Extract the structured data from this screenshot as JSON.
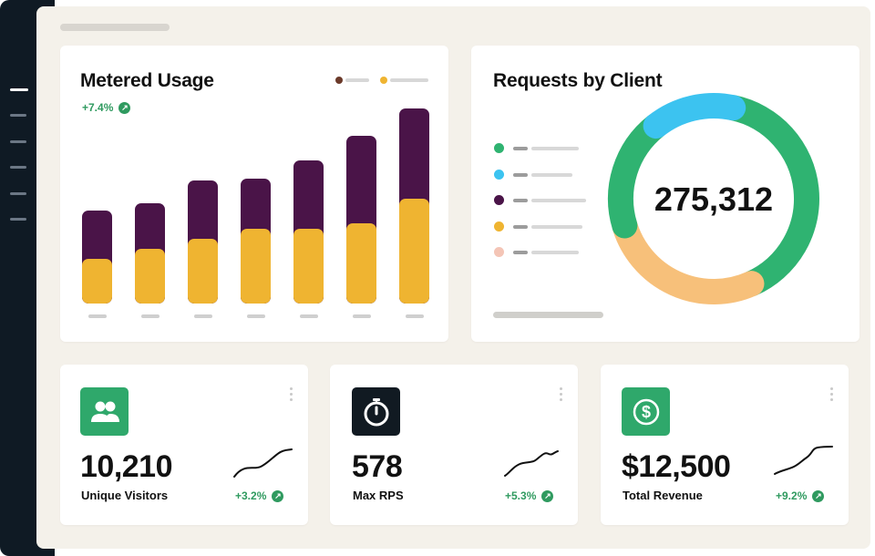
{
  "sidebar": {
    "items": [
      "nav-item-1",
      "nav-item-2",
      "nav-item-3",
      "nav-item-4",
      "nav-item-5",
      "nav-item-6"
    ]
  },
  "metered_usage": {
    "title": "Metered Usage",
    "trend": "+7.4%",
    "legend": [
      {
        "color": "#6b3a2a"
      },
      {
        "color": "#efb431"
      }
    ]
  },
  "requests_by_client": {
    "title": "Requests by Client",
    "total": "275,312",
    "clients": [
      {
        "color": "#2fb371"
      },
      {
        "color": "#3cc3f0"
      },
      {
        "color": "#4a1448"
      },
      {
        "color": "#efb431"
      },
      {
        "color": "#f4c5b6"
      }
    ]
  },
  "kpis": [
    {
      "value": "10,210",
      "label": "Unique Visitors",
      "trend": "+3.2%",
      "icon": "users-icon",
      "icon_bg": "#2fa86b"
    },
    {
      "value": "578",
      "label": "Max RPS",
      "trend": "+5.3%",
      "icon": "stopwatch-icon",
      "icon_bg": "#111a22"
    },
    {
      "value": "$12,500",
      "label": "Total Revenue",
      "trend": "+9.2%",
      "icon": "dollar-icon",
      "icon_bg": "#2fa86b"
    }
  ],
  "chart_data": [
    {
      "type": "bar",
      "title": "Metered Usage",
      "categories": [
        "",
        "",
        "",
        "",
        "",
        "",
        ""
      ],
      "series": [
        {
          "values": [
            18,
            22,
            26,
            30,
            30,
            32,
            42
          ]
        },
        {
          "values": [
            19,
            18,
            23,
            20,
            27,
            35,
            36
          ]
        }
      ],
      "stacked": true,
      "ylim": [
        0,
        80
      ]
    },
    {
      "type": "pie",
      "title": "Requests by Client",
      "center_label": "275,312",
      "donut": true,
      "slices": [
        {
          "color": "#2fb371",
          "value": 40
        },
        {
          "color": "#f7c07a",
          "value": 27
        },
        {
          "color": "#2fb371",
          "value": 19
        },
        {
          "color": "#3cc3f0",
          "value": 14
        }
      ]
    }
  ]
}
